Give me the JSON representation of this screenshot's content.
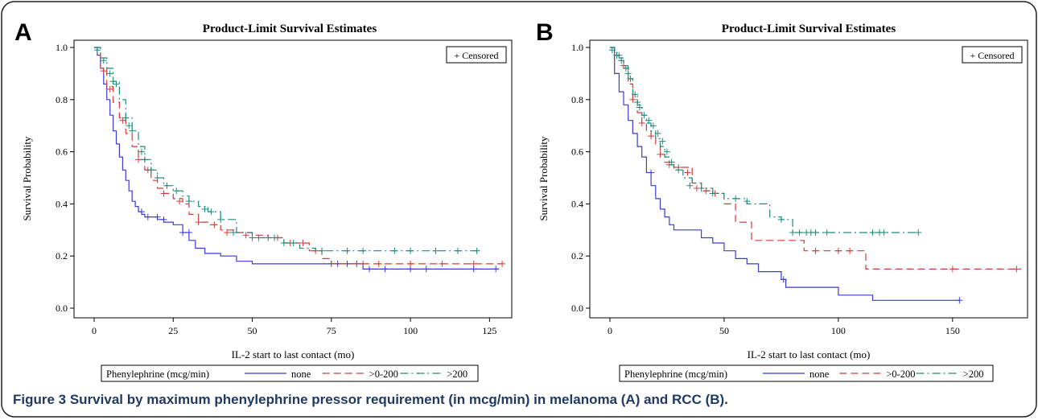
{
  "caption": "Figure 3 Survival by maximum phenylephrine pressor requirement (in mcg/min) in melanoma (A) and RCC (B).",
  "colors": {
    "none": "#3b3bd6",
    "mid": "#d23b3b",
    "high": "#1f8a7a",
    "axis": "#000000",
    "frame": "#000000"
  },
  "chart_data": [
    {
      "type": "line",
      "panel_letter": "A",
      "title": "Product-Limit Survival Estimates",
      "xlabel": "IL-2 start to last contact (mo)",
      "ylabel": "Survival Probability",
      "xlim": [
        0,
        130
      ],
      "ylim": [
        0.0,
        1.0
      ],
      "xticks": [
        "0",
        "25",
        "50",
        "75",
        "100",
        "125"
      ],
      "xtick_values": [
        0,
        25,
        50,
        75,
        100,
        125
      ],
      "yticks": [
        "0.0",
        "0.2",
        "0.4",
        "0.6",
        "0.8",
        "1.0"
      ],
      "ytick_values": [
        0.0,
        0.2,
        0.4,
        0.6,
        0.8,
        1.0
      ],
      "censored_legend": "+ Censored",
      "legend": {
        "title": "Phenylephrine (mcg/min)",
        "entries": [
          "none",
          ">0-200",
          ">200"
        ]
      },
      "series": [
        {
          "name": "none",
          "style": "solid",
          "x": [
            0,
            1,
            2,
            3,
            4,
            5,
            6,
            7,
            8,
            9,
            10,
            11,
            12,
            13,
            14,
            15,
            16,
            18,
            20,
            22,
            25,
            28,
            30,
            32,
            35,
            40,
            45,
            50,
            60,
            70,
            80,
            85,
            128
          ],
          "y": [
            1.0,
            0.97,
            0.92,
            0.86,
            0.8,
            0.74,
            0.68,
            0.63,
            0.58,
            0.53,
            0.49,
            0.45,
            0.41,
            0.39,
            0.37,
            0.36,
            0.35,
            0.35,
            0.34,
            0.33,
            0.32,
            0.29,
            0.26,
            0.23,
            0.21,
            0.2,
            0.18,
            0.17,
            0.17,
            0.17,
            0.17,
            0.15,
            0.15
          ],
          "censored_x": [
            15,
            17,
            20,
            22,
            28,
            30,
            75,
            77,
            80,
            83,
            87,
            92,
            100,
            105,
            120,
            127
          ],
          "censored_y": [
            0.37,
            0.35,
            0.35,
            0.34,
            0.29,
            0.29,
            0.17,
            0.17,
            0.17,
            0.17,
            0.15,
            0.15,
            0.15,
            0.15,
            0.15,
            0.15
          ]
        },
        {
          "name": ">0-200",
          "style": "dashed",
          "x": [
            0,
            2,
            4,
            6,
            8,
            10,
            12,
            14,
            16,
            18,
            20,
            22,
            25,
            28,
            30,
            33,
            36,
            40,
            45,
            50,
            55,
            60,
            65,
            68,
            72,
            75,
            80,
            129
          ],
          "y": [
            1.0,
            0.92,
            0.85,
            0.79,
            0.73,
            0.67,
            0.62,
            0.57,
            0.53,
            0.49,
            0.46,
            0.44,
            0.42,
            0.4,
            0.36,
            0.33,
            0.32,
            0.3,
            0.29,
            0.28,
            0.27,
            0.25,
            0.25,
            0.22,
            0.19,
            0.17,
            0.17,
            0.17
          ],
          "censored_x": [
            3,
            5,
            9,
            14,
            17,
            22,
            27,
            33,
            38,
            42,
            48,
            58,
            62,
            66,
            70,
            85,
            90,
            100,
            110,
            120,
            129
          ],
          "censored_y": [
            0.91,
            0.84,
            0.72,
            0.57,
            0.53,
            0.44,
            0.41,
            0.33,
            0.32,
            0.29,
            0.28,
            0.27,
            0.25,
            0.25,
            0.22,
            0.17,
            0.17,
            0.17,
            0.17,
            0.17,
            0.17
          ]
        },
        {
          "name": ">200",
          "style": "dashdot",
          "x": [
            0,
            2,
            4,
            6,
            8,
            10,
            12,
            14,
            16,
            18,
            20,
            22,
            25,
            28,
            30,
            33,
            36,
            40,
            45,
            50,
            60,
            65,
            70,
            122
          ],
          "y": [
            1.0,
            0.96,
            0.92,
            0.87,
            0.8,
            0.73,
            0.68,
            0.62,
            0.57,
            0.53,
            0.5,
            0.47,
            0.45,
            0.43,
            0.41,
            0.39,
            0.37,
            0.34,
            0.29,
            0.27,
            0.25,
            0.23,
            0.22,
            0.22
          ],
          "censored_x": [
            1,
            3,
            5,
            6,
            7,
            10,
            11,
            12,
            15,
            16,
            18,
            20,
            23,
            26,
            30,
            35,
            37,
            40,
            44,
            50,
            52,
            55,
            57,
            60,
            63,
            72,
            80,
            85,
            95,
            100,
            108,
            115,
            121
          ],
          "censored_y": [
            0.99,
            0.95,
            0.9,
            0.87,
            0.86,
            0.73,
            0.7,
            0.68,
            0.6,
            0.57,
            0.53,
            0.5,
            0.47,
            0.45,
            0.41,
            0.38,
            0.37,
            0.34,
            0.29,
            0.27,
            0.27,
            0.27,
            0.27,
            0.25,
            0.25,
            0.22,
            0.22,
            0.22,
            0.22,
            0.22,
            0.22,
            0.22,
            0.22
          ]
        }
      ]
    },
    {
      "type": "line",
      "panel_letter": "B",
      "title": "Product-Limit Survival Estimates",
      "xlabel": "IL-2 start to last contact (mo)",
      "ylabel": "Survival Probability",
      "xlim": [
        0,
        180
      ],
      "ylim": [
        0.0,
        1.0
      ],
      "xticks": [
        "0",
        "50",
        "100",
        "150"
      ],
      "xtick_values": [
        0,
        50,
        100,
        150
      ],
      "yticks": [
        "0.0",
        "0.2",
        "0.4",
        "0.6",
        "0.8",
        "1.0"
      ],
      "ytick_values": [
        0.0,
        0.2,
        0.4,
        0.6,
        0.8,
        1.0
      ],
      "censored_legend": "+ Censored",
      "legend": {
        "title": "Phenylephrine (mcg/min)",
        "entries": [
          "none",
          ">0-200",
          ">200"
        ]
      },
      "series": [
        {
          "name": "none",
          "style": "solid",
          "x": [
            0,
            2,
            4,
            6,
            8,
            10,
            12,
            14,
            16,
            18,
            20,
            22,
            24,
            26,
            28,
            30,
            35,
            40,
            45,
            50,
            55,
            60,
            65,
            75,
            77,
            100,
            115,
            153
          ],
          "y": [
            1.0,
            0.9,
            0.83,
            0.78,
            0.72,
            0.67,
            0.62,
            0.58,
            0.52,
            0.47,
            0.42,
            0.38,
            0.35,
            0.32,
            0.3,
            0.3,
            0.3,
            0.27,
            0.25,
            0.22,
            0.19,
            0.17,
            0.14,
            0.11,
            0.08,
            0.05,
            0.03,
            0.03
          ],
          "censored_x": [
            18,
            76,
            153
          ],
          "censored_y": [
            0.52,
            0.11,
            0.03
          ]
        },
        {
          "name": ">0-200",
          "style": "dashed",
          "x": [
            0,
            2,
            4,
            6,
            8,
            10,
            12,
            14,
            16,
            18,
            20,
            22,
            24,
            28,
            32,
            36,
            40,
            45,
            50,
            55,
            62,
            70,
            85,
            100,
            112,
            180
          ],
          "y": [
            1.0,
            0.97,
            0.95,
            0.92,
            0.86,
            0.8,
            0.75,
            0.71,
            0.68,
            0.66,
            0.63,
            0.59,
            0.56,
            0.54,
            0.54,
            0.48,
            0.45,
            0.44,
            0.4,
            0.33,
            0.26,
            0.26,
            0.22,
            0.22,
            0.15,
            0.15
          ],
          "censored_x": [
            3,
            6,
            10,
            14,
            18,
            22,
            26,
            30,
            34,
            38,
            42,
            46,
            90,
            100,
            105,
            150,
            178
          ],
          "censored_y": [
            0.97,
            0.93,
            0.8,
            0.71,
            0.66,
            0.59,
            0.55,
            0.54,
            0.52,
            0.46,
            0.45,
            0.44,
            0.22,
            0.22,
            0.22,
            0.15,
            0.15
          ]
        },
        {
          "name": ">200",
          "style": "dashdot",
          "x": [
            0,
            2,
            4,
            6,
            8,
            10,
            12,
            14,
            16,
            18,
            20,
            22,
            24,
            26,
            28,
            32,
            36,
            40,
            45,
            50,
            55,
            60,
            70,
            75,
            80,
            135
          ],
          "y": [
            1.0,
            0.98,
            0.96,
            0.93,
            0.88,
            0.82,
            0.78,
            0.74,
            0.71,
            0.68,
            0.65,
            0.62,
            0.58,
            0.55,
            0.53,
            0.5,
            0.48,
            0.46,
            0.44,
            0.42,
            0.42,
            0.4,
            0.35,
            0.34,
            0.29,
            0.29
          ],
          "censored_x": [
            1,
            3,
            4,
            5,
            7,
            8,
            9,
            11,
            12,
            13,
            15,
            17,
            19,
            21,
            23,
            25,
            27,
            30,
            35,
            40,
            45,
            55,
            60,
            75,
            80,
            83,
            86,
            88,
            90,
            95,
            115,
            118,
            120,
            135
          ],
          "censored_y": [
            0.99,
            0.97,
            0.97,
            0.95,
            0.92,
            0.9,
            0.88,
            0.82,
            0.79,
            0.77,
            0.74,
            0.72,
            0.7,
            0.67,
            0.64,
            0.6,
            0.56,
            0.53,
            0.47,
            0.46,
            0.44,
            0.42,
            0.41,
            0.34,
            0.29,
            0.29,
            0.29,
            0.29,
            0.29,
            0.29,
            0.29,
            0.29,
            0.29,
            0.29
          ]
        }
      ]
    }
  ]
}
